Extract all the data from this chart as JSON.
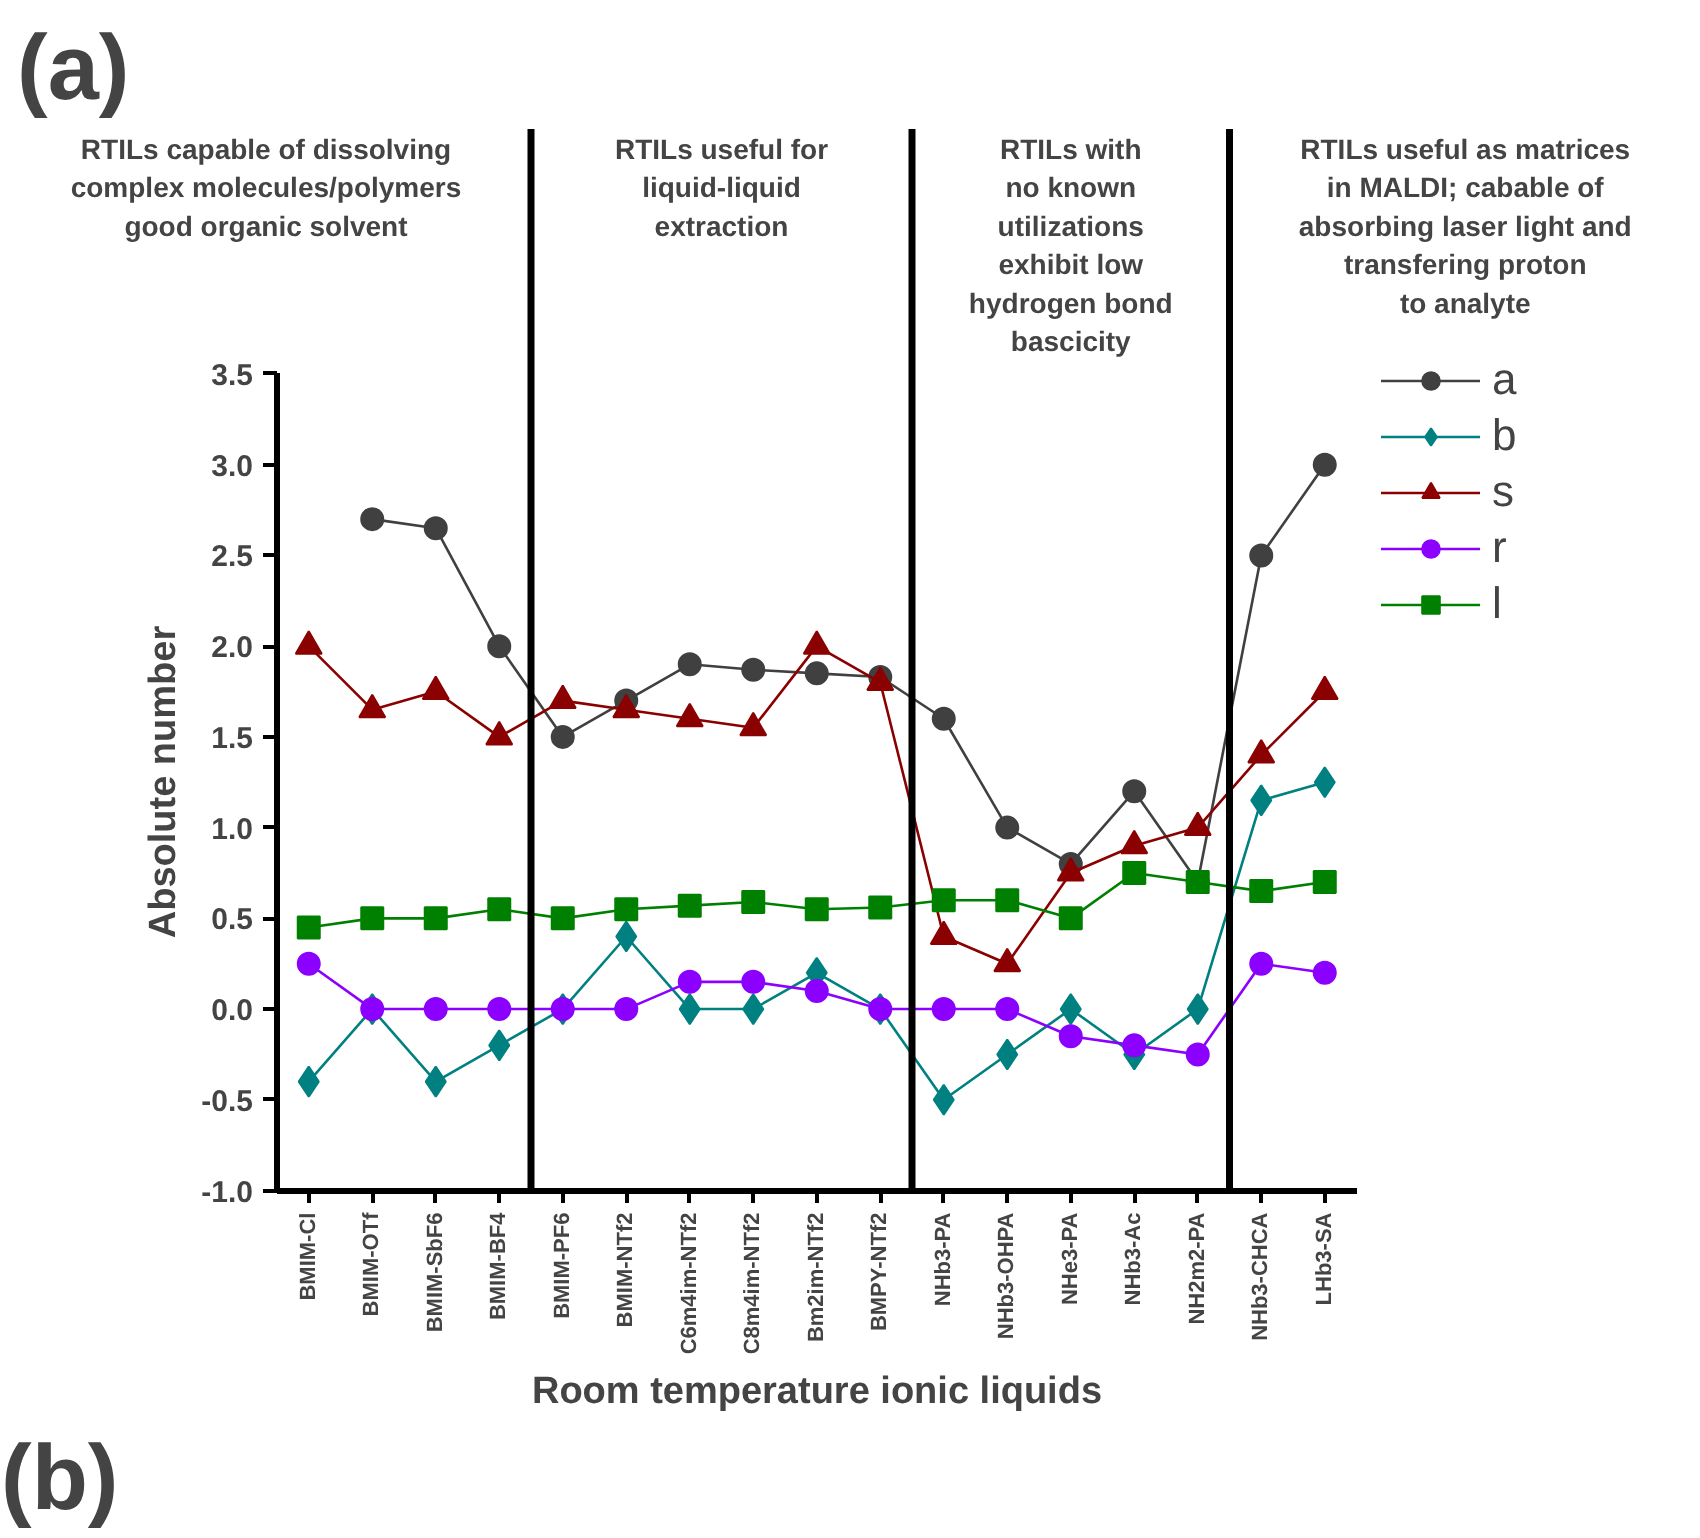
{
  "chart_data": {
    "type": "line",
    "title": "(a)",
    "xlabel": "Room temperature ionic liquids",
    "ylabel": "Absolute number",
    "categories": [
      "BMIM-Cl",
      "BMIM-OTf",
      "BMIM-SbF6",
      "BMIM-BF4",
      "BMIM-PF6",
      "BMIM-NTf2",
      "C6m4im-NTf2",
      "C8m4im-NTf2",
      "Bm2im-NTf2",
      "BMPY-NTf2",
      "NHb3-PA",
      "NHb3-OHPA",
      "NHe3-PA",
      "NHb3-Ac",
      "NH2m2-PA",
      "NHb3-CHCA",
      "LHb3-SA"
    ],
    "series": [
      {
        "name": "a",
        "color": "#404040",
        "marker": "circle",
        "values": [
          null,
          2.7,
          2.65,
          2.0,
          1.5,
          1.7,
          1.9,
          1.87,
          1.85,
          1.83,
          1.6,
          1.0,
          0.8,
          1.2,
          0.7,
          2.5,
          3.0
        ]
      },
      {
        "name": "b",
        "color": "#008080",
        "marker": "diamond",
        "values": [
          -0.4,
          0,
          -0.4,
          -0.2,
          0,
          0.4,
          0,
          0,
          0.2,
          0,
          -0.5,
          -0.25,
          0,
          -0.25,
          0,
          1.15,
          1.25
        ]
      },
      {
        "name": "s",
        "color": "#8b0000",
        "marker": "triangle",
        "values": [
          2.0,
          1.65,
          1.75,
          1.5,
          1.7,
          1.65,
          1.6,
          1.55,
          2.0,
          1.8,
          0.4,
          0.25,
          0.75,
          0.9,
          1.0,
          1.4,
          1.75
        ]
      },
      {
        "name": "r",
        "color": "#8b00ff",
        "marker": "circle",
        "values": [
          0.25,
          0,
          0,
          0,
          0,
          0,
          0.15,
          0.15,
          0.1,
          0,
          0,
          0,
          -0.15,
          -0.2,
          -0.25,
          0.25,
          0.2
        ]
      },
      {
        "name": "l",
        "color": "#008000",
        "marker": "square",
        "values": [
          0.45,
          0.5,
          0.5,
          0.55,
          0.5,
          0.55,
          0.57,
          0.59,
          0.55,
          0.56,
          0.6,
          0.6,
          0.5,
          0.75,
          0.7,
          0.65,
          0.7
        ]
      }
    ],
    "ylim": [
      -1.0,
      3.5
    ],
    "yticks": [
      {
        "value": 3.5,
        "label": "3.5"
      },
      {
        "value": 3.0,
        "label": "3.0"
      },
      {
        "value": 2.5,
        "label": "2.5"
      },
      {
        "value": 2.0,
        "label": "2.0"
      },
      {
        "value": 1.5,
        "label": "1.5"
      },
      {
        "value": 1.0,
        "label": "1.0"
      },
      {
        "value": 0.5,
        "label": "0.5"
      },
      {
        "value": 0.0,
        "label": "0.0"
      },
      {
        "value": -0.5,
        "label": "-0.5"
      },
      {
        "value": -1.0,
        "label": "-1.0"
      }
    ],
    "annotations": [
      "RTILs capable of dissolving\ncomplex molecules/polymers\ngood organic solvent",
      "RTILs useful for\nliquid-liquid\nextraction",
      "RTILs with\nno known\nutilizations\nexhibit low\nhydrogen bond\nbascicity",
      "RTILs useful as matrices\nin MALDI; cabable of\nabsorbing laser light and\ntransfering proton\nto analyte",
      "(b)"
    ],
    "legend": "top right",
    "grid": false
  }
}
